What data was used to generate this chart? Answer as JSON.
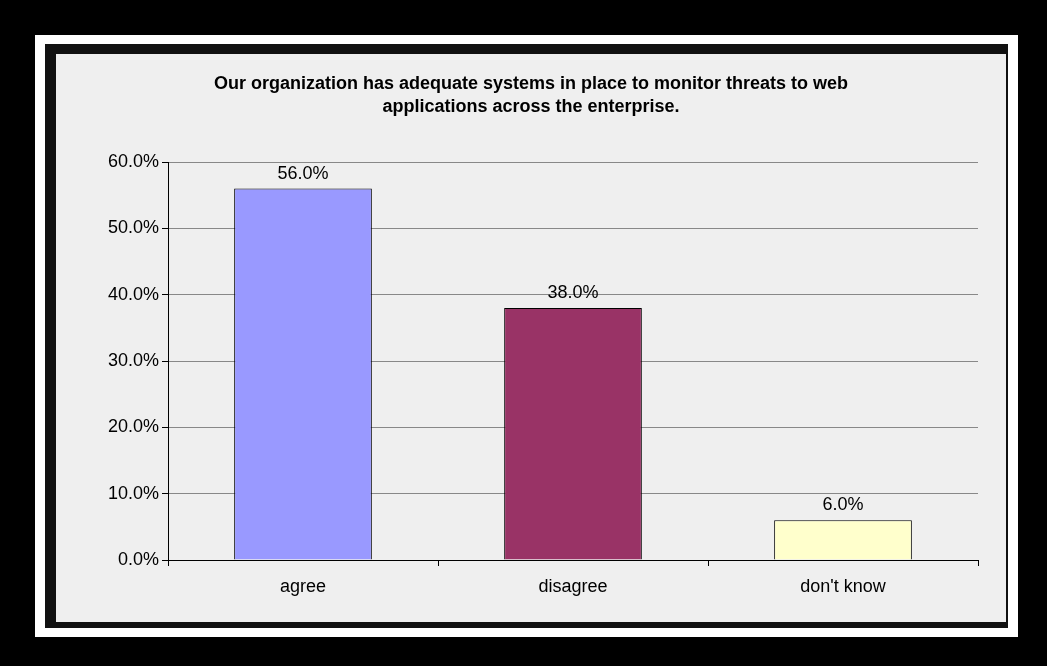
{
  "chart_data": {
    "type": "bar",
    "title": "Our organization has adequate systems in place to monitor threats to web applications across the enterprise.",
    "categories": [
      "agree",
      "disagree",
      "don't know"
    ],
    "values": [
      56,
      38,
      6
    ],
    "colors": [
      "#9999ff",
      "#993366",
      "#ffffcc"
    ],
    "value_labels": [
      "56.0%",
      "38.0%",
      "6.0%"
    ],
    "ylim": [
      0,
      60
    ],
    "yticks": [
      {
        "value": 0,
        "label": "0.0%"
      },
      {
        "value": 10,
        "label": "10.0%"
      },
      {
        "value": 20,
        "label": "20.0%"
      },
      {
        "value": 30,
        "label": "30.0%"
      },
      {
        "value": 40,
        "label": "40.0%"
      },
      {
        "value": 50,
        "label": "50.0%"
      },
      {
        "value": 60,
        "label": "60.0%"
      }
    ],
    "grid": "y",
    "legend": false
  }
}
